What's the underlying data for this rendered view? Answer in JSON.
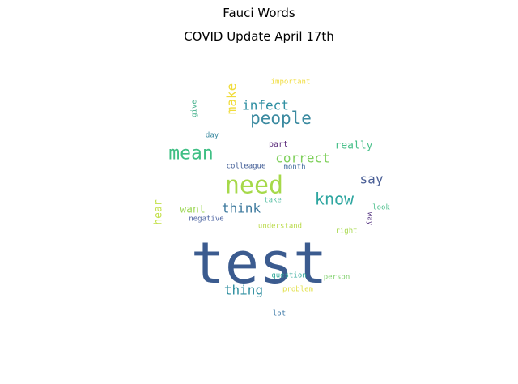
{
  "suptitle": "Fauci Words",
  "title": "COVID Update April 17th",
  "chart_data": {
    "type": "wordcloud",
    "words": [
      {
        "text": "test",
        "color": "#3b5b8f"
      },
      {
        "text": "need",
        "color": "#a6d94a"
      },
      {
        "text": "mean",
        "color": "#3fbf84"
      },
      {
        "text": "people",
        "color": "#3b8aa0"
      },
      {
        "text": "know",
        "color": "#2ea6a0"
      },
      {
        "text": "infect",
        "color": "#2f8fa2"
      },
      {
        "text": "make",
        "color": "#f0dc3c"
      },
      {
        "text": "correct",
        "color": "#7fd05c"
      },
      {
        "text": "thing",
        "color": "#2f8fa0"
      },
      {
        "text": "think",
        "color": "#3e7a9e"
      },
      {
        "text": "say",
        "color": "#4a5f96"
      },
      {
        "text": "really",
        "color": "#48c08a"
      },
      {
        "text": "want",
        "color": "#9fd85a"
      },
      {
        "text": "hear",
        "color": "#c3e04a"
      },
      {
        "text": "important",
        "color": "#f0dc3c"
      },
      {
        "text": "give",
        "color": "#46b28e"
      },
      {
        "text": "day",
        "color": "#3b8aa0"
      },
      {
        "text": "part",
        "color": "#5a2a7a"
      },
      {
        "text": "colleague",
        "color": "#3e5a94"
      },
      {
        "text": "month",
        "color": "#4670a0"
      },
      {
        "text": "take",
        "color": "#5fc2a8"
      },
      {
        "text": "negative",
        "color": "#4a62a0"
      },
      {
        "text": "understand",
        "color": "#bada4a"
      },
      {
        "text": "look",
        "color": "#4fc08e"
      },
      {
        "text": "way",
        "color": "#5a3a84"
      },
      {
        "text": "right",
        "color": "#a6d84a"
      },
      {
        "text": "question",
        "color": "#32a89a"
      },
      {
        "text": "problem",
        "color": "#e2e04a"
      },
      {
        "text": "person",
        "color": "#7ed06a"
      },
      {
        "text": "lot",
        "color": "#3e7aa8"
      }
    ]
  }
}
